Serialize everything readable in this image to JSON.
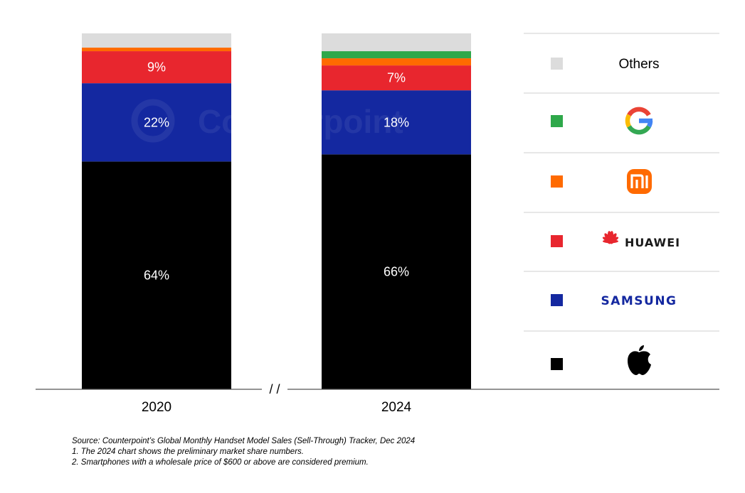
{
  "watermark": "Counterpoint",
  "chart_data": {
    "type": "bar",
    "stacked": true,
    "categories": [
      "2020",
      "2024"
    ],
    "axis_break_label": "/ /",
    "series": [
      {
        "name": "Apple",
        "values": [
          64,
          66
        ],
        "labels": [
          "64%",
          "66%"
        ],
        "color": "#000000",
        "icon": "apple-logo-icon"
      },
      {
        "name": "SAMSUNG",
        "values": [
          22,
          18
        ],
        "labels": [
          "22%",
          "18%"
        ],
        "color": "#1428a0",
        "icon": "samsung-wordmark"
      },
      {
        "name": "HUAWEI",
        "values": [
          9,
          7
        ],
        "labels": [
          "9%",
          "7%"
        ],
        "color": "#e8262e",
        "icon": "huawei-logo-icon"
      },
      {
        "name": "Xiaomi",
        "values": [
          1,
          2
        ],
        "labels": [
          "",
          ""
        ],
        "color": "#ff6a00",
        "icon": "xiaomi-logo-icon"
      },
      {
        "name": "Google",
        "values": [
          0,
          2
        ],
        "labels": [
          "",
          ""
        ],
        "color": "#2ea84a",
        "icon": "google-logo-icon"
      },
      {
        "name": "Others",
        "values": [
          4,
          5
        ],
        "labels": [
          "",
          ""
        ],
        "color": "#dcdcdc",
        "icon": ""
      }
    ],
    "ylim": [
      0,
      100
    ],
    "legend": "right",
    "legend_entries": [
      "Others",
      "Google",
      "Xiaomi",
      "HUAWEI",
      "SAMSUNG",
      "Apple"
    ],
    "grid": false
  },
  "legend_text": {
    "others": "Others",
    "huawei": "HUAWEI",
    "samsung": "SAMSUNG",
    "xiaomi_mark": "mi"
  },
  "notes": {
    "source": "Source: Counterpoint’s Global Monthly Handset Model Sales (Sell-Through) Tracker, Dec 2024",
    "note1": "1. The 2024 chart shows the preliminary market share numbers.",
    "note2": "2. Smartphones with a wholesale price of $600 or above are considered premium."
  }
}
